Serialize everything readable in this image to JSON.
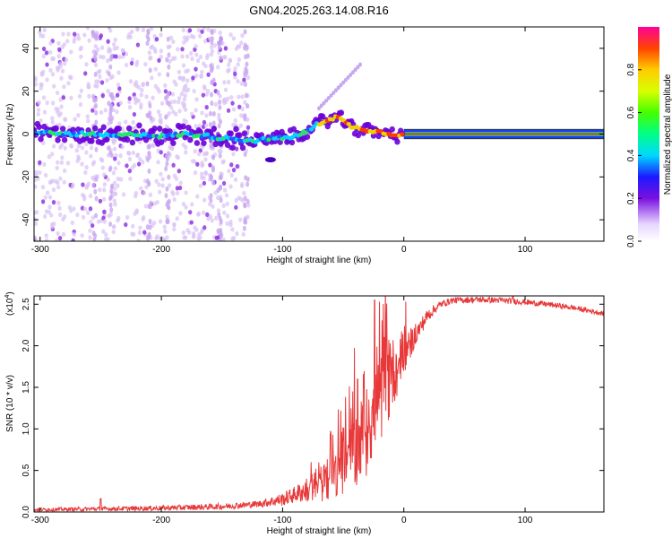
{
  "title": "GN04.2025.263.14.08.R16",
  "chart_data": [
    {
      "type": "heatmap",
      "title": "GN04.2025.263.14.08.R16",
      "xlabel": "Height of straight line (km)",
      "ylabel": "Frequency (Hz)",
      "xlim": [
        -305,
        165
      ],
      "ylim": [
        -50,
        50
      ],
      "xticks": [
        -300,
        -200,
        -100,
        0,
        100
      ],
      "xtick_labels": [
        "-300",
        "-200",
        "-100",
        "0",
        "100"
      ],
      "yticks": [
        -40,
        -20,
        0,
        20,
        40
      ],
      "ytick_labels": [
        "-40",
        "-20",
        "0",
        "20",
        "40"
      ],
      "colorbar": {
        "label": "Normalized spectral amplitude",
        "range": [
          0.0,
          1.0
        ],
        "ticks": [
          0.0,
          0.2,
          0.4,
          0.6,
          0.8
        ],
        "tick_labels": [
          "0.0",
          "0.2",
          "0.4",
          "0.6",
          "0.8"
        ]
      },
      "ridge": {
        "x": [
          -305,
          -280,
          -260,
          -240,
          -220,
          -200,
          -180,
          -160,
          -150,
          -140,
          -130,
          -120,
          -110,
          -100,
          -90,
          -80,
          -70,
          -62,
          -55,
          -50,
          -45,
          -40,
          -30,
          -20,
          -10,
          0,
          165
        ],
        "y": [
          1,
          0,
          0,
          -1,
          0,
          -1,
          0,
          -1,
          -2,
          -2,
          -3,
          -3,
          -2,
          -2,
          -1,
          1,
          5,
          7,
          8,
          6,
          4,
          3,
          2,
          1,
          0,
          0,
          0
        ]
      },
      "scatter_band": {
        "x_range": [
          -305,
          -128
        ],
        "y_range": [
          -50,
          50
        ]
      }
    },
    {
      "type": "line",
      "xlabel": "Height of straight line (km)",
      "ylabel": "SNR (10 * v/v)",
      "scale_label": "(x10",
      "scale_exponent": "4",
      "scale_suffix": ")",
      "xlim": [
        -305,
        165
      ],
      "ylim": [
        0,
        2.6
      ],
      "xticks": [
        -300,
        -200,
        -100,
        0,
        100
      ],
      "xtick_labels": [
        "-300",
        "-200",
        "-100",
        "0",
        "100"
      ],
      "yticks": [
        0.0,
        0.5,
        1.0,
        1.5,
        2.0,
        2.5
      ],
      "ytick_labels": [
        "0.0",
        "0.5",
        "1.0",
        "1.5",
        "2.0",
        "2.5"
      ],
      "color": "#e8393a",
      "envelope": {
        "x": [
          -305,
          -250,
          -200,
          -150,
          -120,
          -100,
          -80,
          -60,
          -50,
          -40,
          -30,
          -20,
          -10,
          0,
          10,
          20,
          30,
          40,
          60,
          80,
          100,
          120,
          140,
          165
        ],
        "y": [
          0.03,
          0.04,
          0.05,
          0.07,
          0.1,
          0.16,
          0.28,
          0.42,
          0.58,
          0.8,
          1.05,
          1.35,
          1.7,
          1.92,
          2.15,
          2.38,
          2.5,
          2.55,
          2.56,
          2.55,
          2.53,
          2.5,
          2.46,
          2.39
        ]
      },
      "noise_amp": {
        "x": [
          -305,
          -120,
          -90,
          -70,
          -50,
          -30,
          -15,
          0,
          10,
          30,
          165
        ],
        "y": [
          0.02,
          0.04,
          0.1,
          0.2,
          0.35,
          0.55,
          0.55,
          0.25,
          0.12,
          0.04,
          0.03
        ]
      },
      "spikes": [
        {
          "x": -250,
          "y": 0.16
        },
        {
          "x": -38,
          "y": 1.6
        },
        {
          "x": -24,
          "y": 2.55
        },
        {
          "x": -16,
          "y": 2.1
        },
        {
          "x": 90,
          "y": 2.6
        }
      ]
    }
  ]
}
